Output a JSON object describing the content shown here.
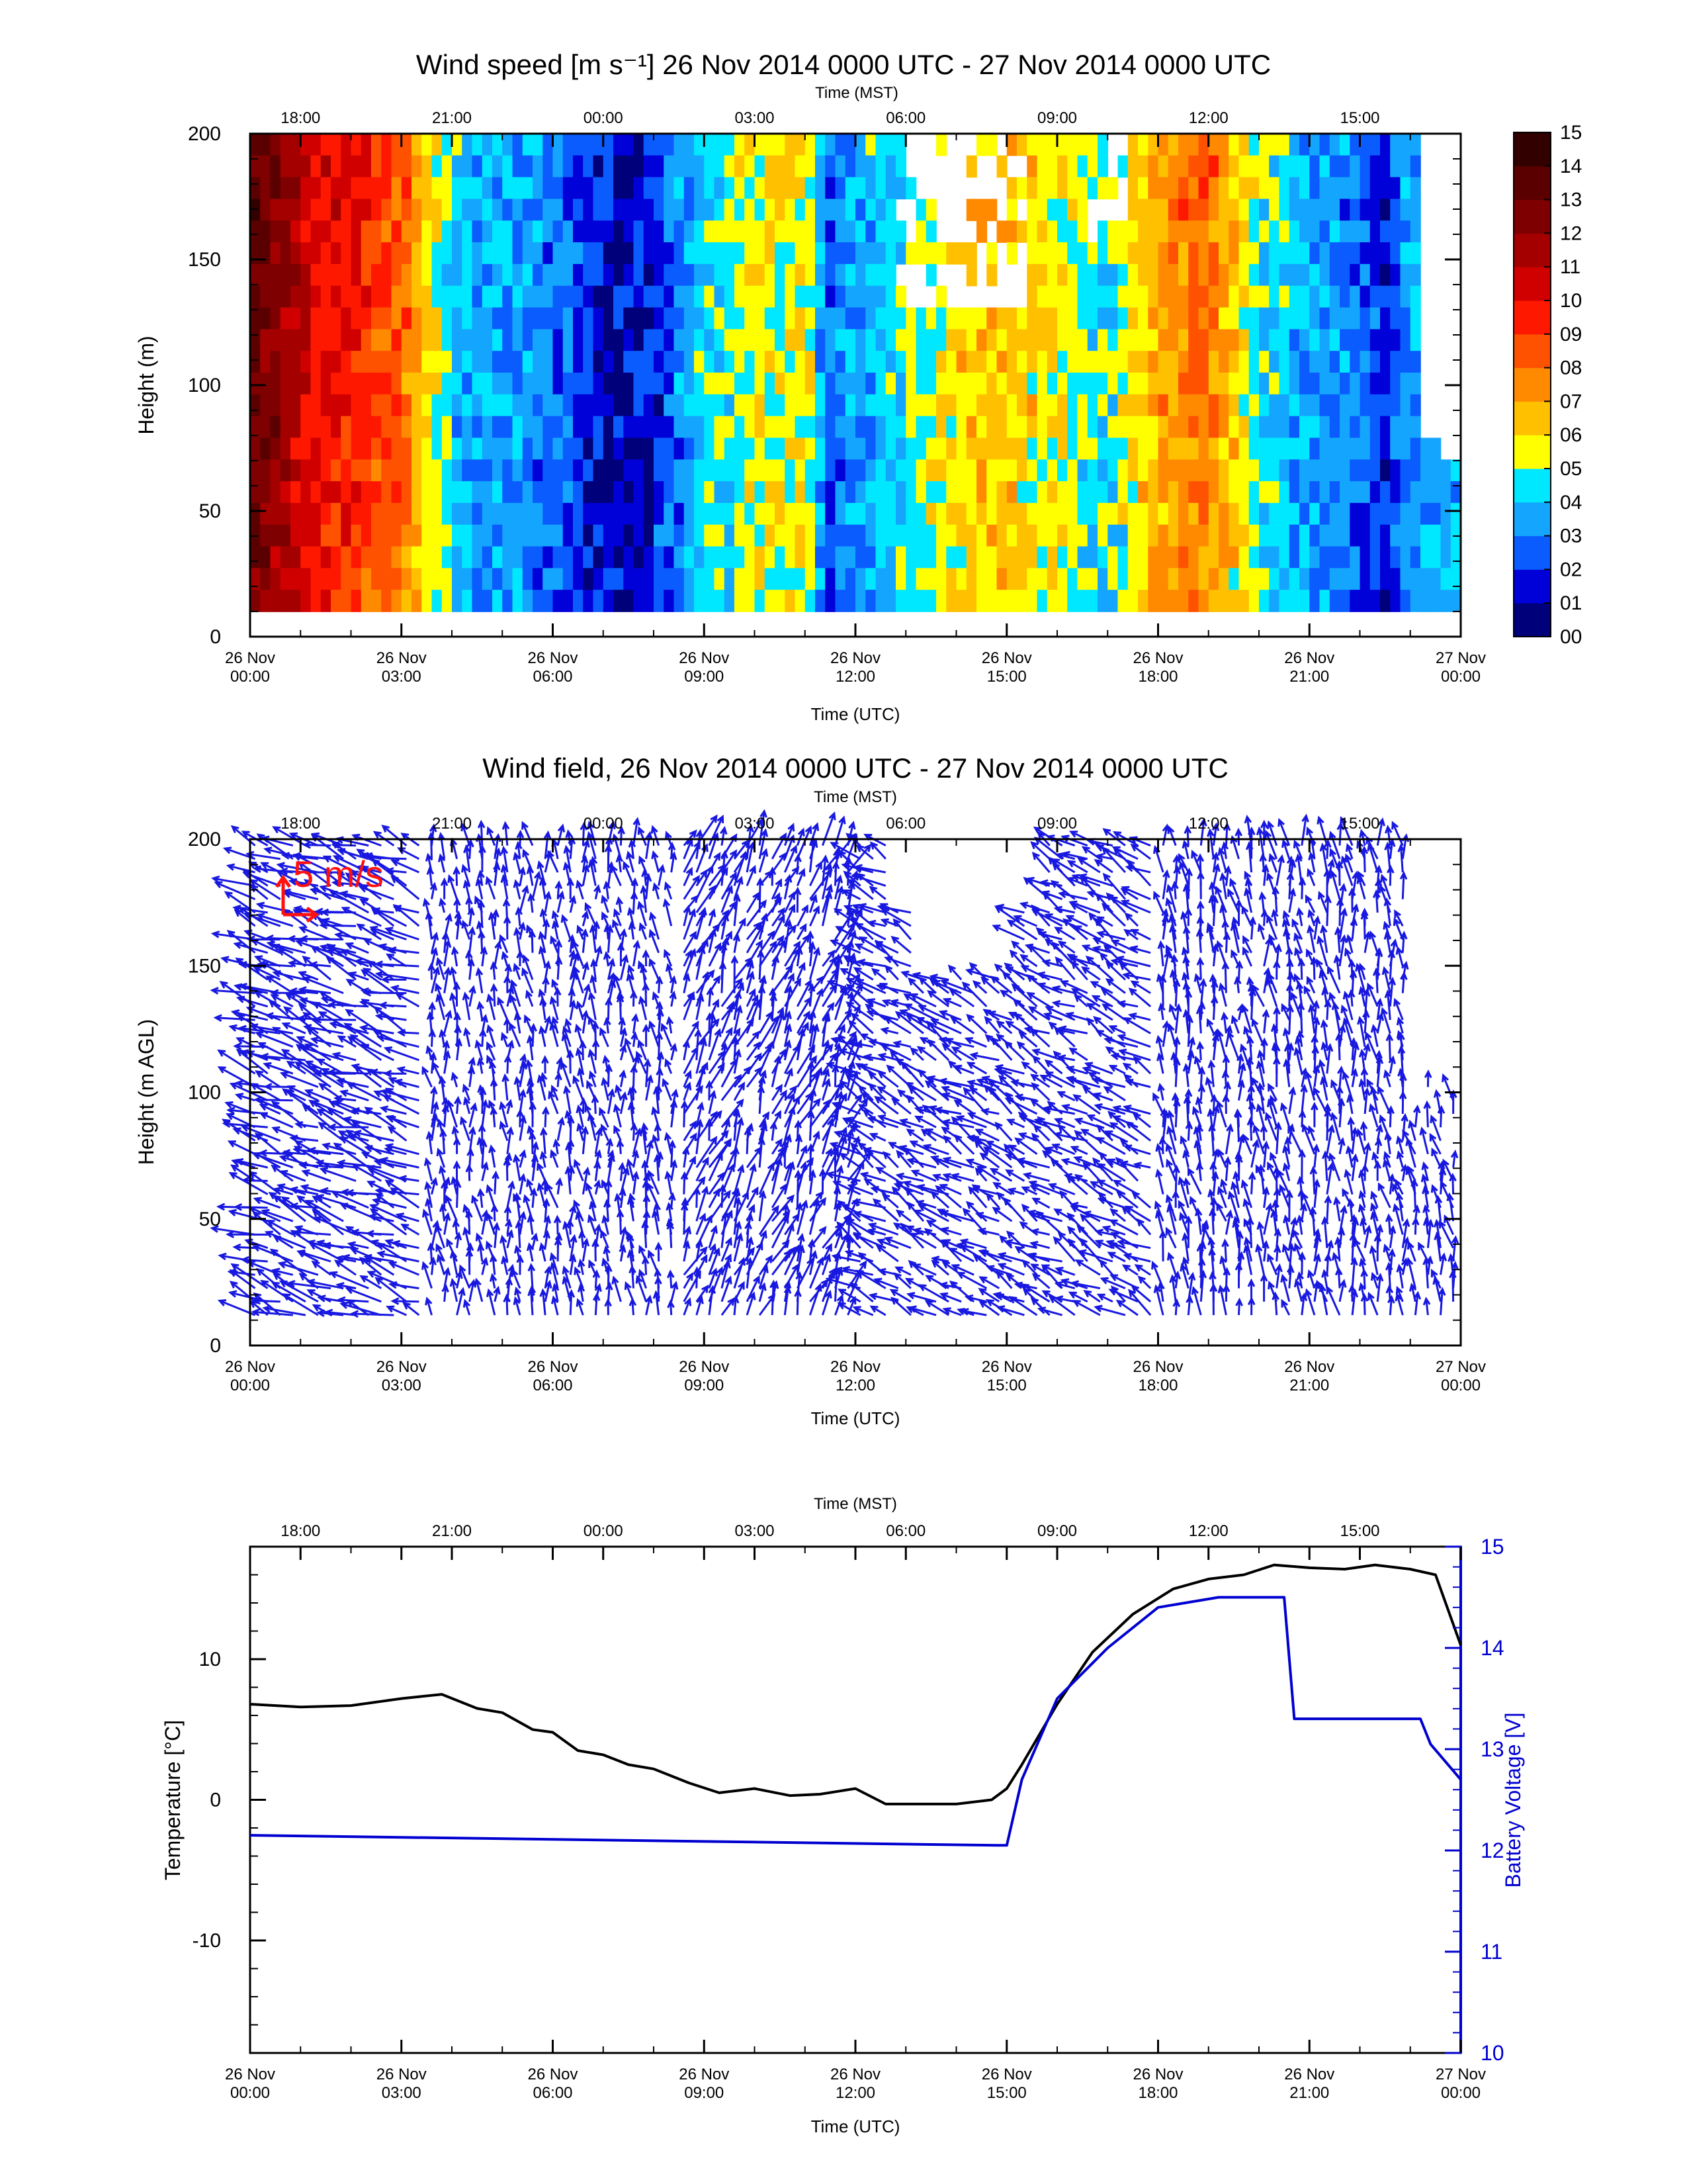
{
  "chart_data": [
    {
      "type": "heatmap",
      "title": "Wind speed [m s⁻¹] 26 Nov 2014 0000 UTC - 27 Nov 2014 0000 UTC",
      "ylabel": "Height (m)",
      "xlabel_bottom": "Time (UTC)",
      "xlabel_top": "Time (MST)",
      "x_ticks_bottom": [
        {
          "l1": "26 Nov",
          "l2": "00:00",
          "h": 0
        },
        {
          "l1": "26 Nov",
          "l2": "03:00",
          "h": 3
        },
        {
          "l1": "26 Nov",
          "l2": "06:00",
          "h": 6
        },
        {
          "l1": "26 Nov",
          "l2": "09:00",
          "h": 9
        },
        {
          "l1": "26 Nov",
          "l2": "12:00",
          "h": 12
        },
        {
          "l1": "26 Nov",
          "l2": "15:00",
          "h": 15
        },
        {
          "l1": "26 Nov",
          "l2": "18:00",
          "h": 18
        },
        {
          "l1": "26 Nov",
          "l2": "21:00",
          "h": 21
        },
        {
          "l1": "27 Nov",
          "l2": "00:00",
          "h": 24
        }
      ],
      "x_ticks_top": [
        {
          "label": "18:00",
          "h": 1
        },
        {
          "label": "21:00",
          "h": 4
        },
        {
          "label": "00:00",
          "h": 7
        },
        {
          "label": "03:00",
          "h": 10
        },
        {
          "label": "06:00",
          "h": 13
        },
        {
          "label": "09:00",
          "h": 16
        },
        {
          "label": "12:00",
          "h": 19
        },
        {
          "label": "15:00",
          "h": 22
        }
      ],
      "y_ticks": [
        0,
        50,
        100,
        150,
        200
      ],
      "ylim": [
        0,
        200
      ],
      "xlim_hours_utc": [
        0,
        24
      ],
      "colorbar_labels": [
        "00",
        "01",
        "02",
        "03",
        "04",
        "05",
        "06",
        "07",
        "08",
        "09",
        "10",
        "11",
        "12",
        "13",
        "14",
        "15"
      ],
      "colorbar_colors": [
        "#00007a",
        "#0000d8",
        "#0a5cff",
        "#14a6ff",
        "#00e8ff",
        "#ffff00",
        "#ffc000",
        "#ff8a00",
        "#ff5200",
        "#ff1800",
        "#d00000",
        "#a40000",
        "#7e0000",
        "#5a0000",
        "#330000"
      ],
      "column_profile_speed_ms": [
        {
          "h": 0.0,
          "speed": 12.5
        },
        {
          "h": 0.5,
          "speed": 11.8
        },
        {
          "h": 1.2,
          "speed": 9.5
        },
        {
          "h": 2.0,
          "speed": 9.0
        },
        {
          "h": 2.6,
          "speed": 8.2
        },
        {
          "h": 3.2,
          "speed": 7.2
        },
        {
          "h": 3.6,
          "speed": 5.6
        },
        {
          "h": 4.0,
          "speed": 3.8
        },
        {
          "h": 5.0,
          "speed": 3.2
        },
        {
          "h": 6.0,
          "speed": 2.6
        },
        {
          "h": 6.8,
          "speed": 1.6
        },
        {
          "h": 7.5,
          "speed": 0.9
        },
        {
          "h": 8.3,
          "speed": 2.2
        },
        {
          "h": 9.0,
          "speed": 4.2
        },
        {
          "h": 10.0,
          "speed": 5.2
        },
        {
          "h": 11.0,
          "speed": 5.6
        },
        {
          "h": 11.5,
          "speed": 2.5
        },
        {
          "h": 12.0,
          "speed": 3.2
        },
        {
          "h": 13.0,
          "speed": 4.4
        },
        {
          "h": 14.0,
          "speed": 5.8
        },
        {
          "h": 15.0,
          "speed": 6.2
        },
        {
          "h": 16.0,
          "speed": 5.3
        },
        {
          "h": 17.0,
          "speed": 4.2
        },
        {
          "h": 18.0,
          "speed": 6.8
        },
        {
          "h": 19.0,
          "speed": 7.4
        },
        {
          "h": 20.0,
          "speed": 4.6
        },
        {
          "h": 21.0,
          "speed": 3.2
        },
        {
          "h": 22.0,
          "speed": 2.5
        },
        {
          "h": 22.5,
          "speed": 1.3
        },
        {
          "h": 23.0,
          "speed": 3.2
        },
        {
          "h": 24.0,
          "speed": 3.8
        }
      ]
    },
    {
      "type": "quiver",
      "title": "Wind field, 26 Nov 2014 0000 UTC - 27 Nov 2014 0000 UTC",
      "ylabel": "Height (m AGL)",
      "xlabel_bottom": "Time (UTC)",
      "xlabel_top": "Time (MST)",
      "reference_vector_label": "5 m/s",
      "reference_vector_ms": 5,
      "ylim": [
        0,
        200
      ],
      "y_ticks": [
        0,
        50,
        100,
        150,
        200
      ],
      "wind_regimes": [
        {
          "h_start": 0,
          "h_end": 3.5,
          "direction": "from east-southeast, strong"
        },
        {
          "h_start": 3.5,
          "h_end": 8.5,
          "direction": "mostly from south, weak"
        },
        {
          "h_start": 8.5,
          "h_end": 12,
          "direction": "from south-southwest"
        },
        {
          "h_start": 12,
          "h_end": 18,
          "direction": "from east-southeast, moderate"
        },
        {
          "h_start": 18,
          "h_end": 24,
          "direction": "from south, variable"
        }
      ]
    },
    {
      "type": "line",
      "ylabel_left": "Temperature [°C]",
      "ylabel_right": "Battery Voltage [V]",
      "xlabel_bottom": "Time (UTC)",
      "xlabel_top": "Time (MST)",
      "ylim_left": [
        -18,
        18
      ],
      "ylim_right": [
        10,
        15
      ],
      "y_ticks_left": [
        -10,
        0,
        10
      ],
      "y_ticks_right": [
        10,
        11,
        12,
        13,
        14,
        15
      ],
      "series": [
        {
          "name": "Temperature",
          "axis": "left",
          "color": "#000000",
          "x_hours_utc": [
            0,
            1,
            2,
            3,
            3.8,
            4.5,
            5,
            5.6,
            6,
            6.5,
            7,
            7.5,
            8,
            8.7,
            9.3,
            10,
            10.7,
            11.3,
            12,
            12.6,
            13.3,
            14,
            14.7,
            15,
            15.3,
            16,
            16.7,
            17.5,
            18.3,
            19,
            19.7,
            20.3,
            21,
            21.7,
            22.3,
            23,
            23.5,
            24
          ],
          "y": [
            6.8,
            6.6,
            6.7,
            7.2,
            7.5,
            6.5,
            6.2,
            5.0,
            4.8,
            3.5,
            3.2,
            2.5,
            2.2,
            1.2,
            0.5,
            0.8,
            0.3,
            0.4,
            0.8,
            -0.3,
            -0.3,
            -0.3,
            0.0,
            0.8,
            2.5,
            6.8,
            10.5,
            13.2,
            15.0,
            15.7,
            16.0,
            16.7,
            16.5,
            16.4,
            16.7,
            16.4,
            16.0,
            11.0
          ]
        },
        {
          "name": "Battery Voltage",
          "axis": "right",
          "color": "#0000d0",
          "x_hours_utc": [
            0,
            14.8,
            15.0,
            15.3,
            16,
            17,
            18,
            19.2,
            20.2,
            20.5,
            20.7,
            23.2,
            23.4,
            24
          ],
          "y": [
            12.15,
            12.05,
            12.05,
            12.7,
            13.5,
            14.0,
            14.4,
            14.5,
            14.5,
            14.5,
            13.3,
            13.3,
            13.05,
            12.7
          ]
        }
      ]
    }
  ]
}
